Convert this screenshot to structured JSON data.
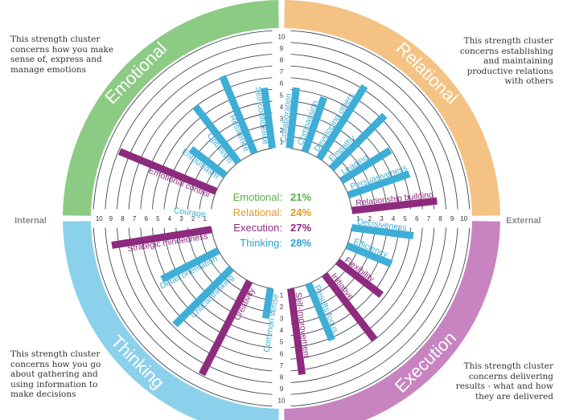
{
  "chart_data": {
    "type": "radial-bar",
    "scale": {
      "min": 0,
      "max": 10,
      "ticks": [
        1,
        2,
        3,
        4,
        5,
        6,
        7,
        8,
        9,
        10
      ]
    },
    "axis_labels": {
      "left": "Internal",
      "right": "External"
    },
    "clusters": [
      {
        "name": "Emotional",
        "color": "#8ccb84",
        "percent": "21%",
        "percent_color": "#5ab04a",
        "description": "This strength cluster concerns how you make sense of, express and manage emotions",
        "strengths": [
          {
            "name": "Courage",
            "value": 0,
            "highlight": false
          },
          {
            "name": "Emotional control",
            "value": 8.9,
            "highlight": true
          },
          {
            "name": "Enthusiasm",
            "value": 3.7,
            "highlight": false
          },
          {
            "name": "Optimism",
            "value": 6.0,
            "highlight": false
          },
          {
            "name": "Resilience",
            "value": 7.1,
            "highlight": false
          },
          {
            "name": "Self-confidence",
            "value": 5.2,
            "highlight": false
          }
        ]
      },
      {
        "name": "Relational",
        "color": "#f4c384",
        "percent": "24%",
        "percent_color": "#e29a2a",
        "description": "This strength cluster concerns establishing and maintaining productive relations with others",
        "strengths": [
          {
            "name": "Collaboration",
            "value": 5.2,
            "highlight": false
          },
          {
            "name": "Compassion",
            "value": 4.9,
            "highlight": false
          },
          {
            "name": "Developing others",
            "value": 7.3,
            "highlight": false
          },
          {
            "name": "Empathy",
            "value": 6.4,
            "highlight": false
          },
          {
            "name": "Leading",
            "value": 4.9,
            "highlight": false
          },
          {
            "name": "Persuasiveness",
            "value": 5.5,
            "highlight": false
          },
          {
            "name": "Relationship building",
            "value": 7.3,
            "highlight": true
          }
        ]
      },
      {
        "name": "Execution",
        "color": "#c884c0",
        "percent": "27%",
        "percent_color": "#8d2a7f",
        "description": "This strength cluster concerns delivering results - what and how they are delivered",
        "strengths": [
          {
            "name": "Decisiveness",
            "value": 5.3,
            "highlight": false
          },
          {
            "name": "Efficiency",
            "value": 4.1,
            "highlight": false
          },
          {
            "name": "Flexibility",
            "value": 4.7,
            "highlight": true
          },
          {
            "name": "Initiative",
            "value": 7.0,
            "highlight": true
          },
          {
            "name": "Results focus",
            "value": 5.2,
            "highlight": false
          },
          {
            "name": "Self-improvement",
            "value": 7.4,
            "highlight": true
          }
        ]
      },
      {
        "name": "Thinking",
        "color": "#8cd1ec",
        "percent": "28%",
        "percent_color": "#2aa3d3",
        "description": "This strength cluster concerns how you go about gathering and using information to make decisions",
        "strengths": [
          {
            "name": "Common sense",
            "value": 2.6,
            "highlight": false
          },
          {
            "name": "Creativity",
            "value": 8.9,
            "highlight": true
          },
          {
            "name": "Critical thinking",
            "value": 6.8,
            "highlight": false
          },
          {
            "name": "Detail orientation",
            "value": 5.4,
            "highlight": false
          },
          {
            "name": "Strategic mindedness",
            "value": 8.6,
            "highlight": true
          }
        ]
      }
    ]
  }
}
